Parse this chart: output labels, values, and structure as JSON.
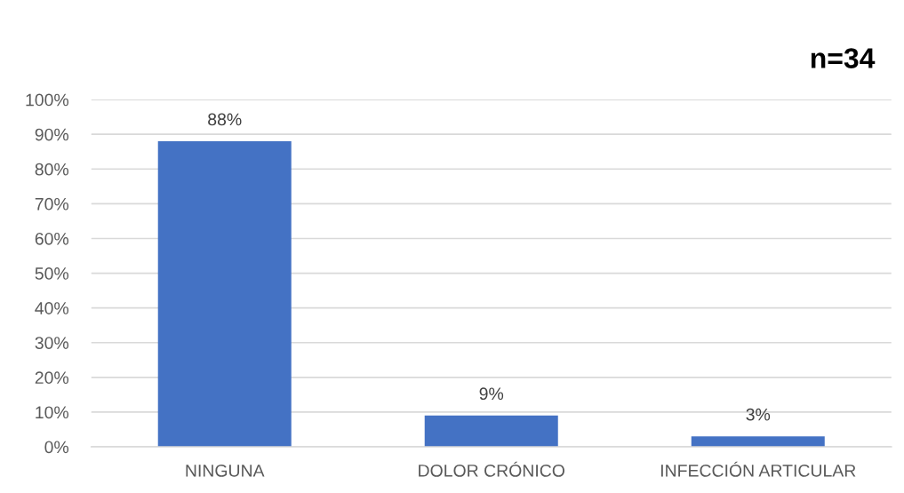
{
  "chart_data": {
    "type": "bar",
    "categories": [
      "NINGUNA",
      "DOLOR CRÓNICO",
      "INFECCIÓN ARTICULAR"
    ],
    "values": [
      88,
      9,
      3
    ],
    "color": "#4472c4",
    "value_labels": [
      "88%",
      "9%",
      "3%"
    ],
    "ylim": [
      0,
      100
    ],
    "yticks": [
      {
        "value": 0,
        "label": "0%"
      },
      {
        "value": 10,
        "label": "10%"
      },
      {
        "value": 20,
        "label": "20%"
      },
      {
        "value": 30,
        "label": "30%"
      },
      {
        "value": 40,
        "label": "40%"
      },
      {
        "value": 50,
        "label": "50%"
      },
      {
        "value": 60,
        "label": "60%"
      },
      {
        "value": 70,
        "label": "70%"
      },
      {
        "value": 80,
        "label": "80%"
      },
      {
        "value": 90,
        "label": "90%"
      },
      {
        "value": 100,
        "label": "100%"
      }
    ],
    "grid": "y",
    "annotations": [
      "n=34"
    ]
  }
}
